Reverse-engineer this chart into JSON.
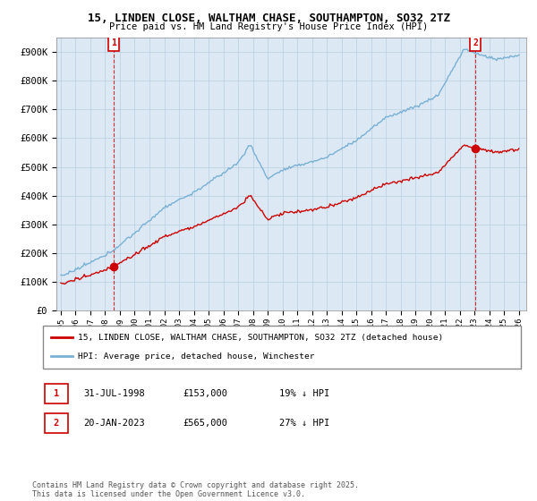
{
  "title": "15, LINDEN CLOSE, WALTHAM CHASE, SOUTHAMPTON, SO32 2TZ",
  "subtitle": "Price paid vs. HM Land Registry's House Price Index (HPI)",
  "ylim": [
    0,
    950000
  ],
  "xlim_start": 1994.7,
  "xlim_end": 2026.5,
  "yticks": [
    0,
    100000,
    200000,
    300000,
    400000,
    500000,
    600000,
    700000,
    800000,
    900000
  ],
  "ytick_labels": [
    "£0",
    "£100K",
    "£200K",
    "£300K",
    "£400K",
    "£500K",
    "£600K",
    "£700K",
    "£800K",
    "£900K"
  ],
  "xticks": [
    1995,
    1996,
    1997,
    1998,
    1999,
    2000,
    2001,
    2002,
    2003,
    2004,
    2005,
    2006,
    2007,
    2008,
    2009,
    2010,
    2011,
    2012,
    2013,
    2014,
    2015,
    2016,
    2017,
    2018,
    2019,
    2020,
    2021,
    2022,
    2023,
    2024,
    2025,
    2026
  ],
  "sale1_x": 1998.58,
  "sale1_y": 153000,
  "sale1_label": "1",
  "sale2_x": 2023.05,
  "sale2_y": 565000,
  "sale2_label": "2",
  "red_line_color": "#cc0000",
  "blue_line_color": "#7ab0d4",
  "marker_box_color": "#cc0000",
  "plot_bg_color": "#dce9f5",
  "legend_line1": "15, LINDEN CLOSE, WALTHAM CHASE, SOUTHAMPTON, SO32 2TZ (detached house)",
  "legend_line2": "HPI: Average price, detached house, Winchester",
  "table_row1": [
    "1",
    "31-JUL-1998",
    "£153,000",
    "19% ↓ HPI"
  ],
  "table_row2": [
    "2",
    "20-JAN-2023",
    "£565,000",
    "27% ↓ HPI"
  ],
  "footnote": "Contains HM Land Registry data © Crown copyright and database right 2025.\nThis data is licensed under the Open Government Licence v3.0.",
  "bg_color": "#ffffff",
  "grid_color": "#b8cfe0"
}
